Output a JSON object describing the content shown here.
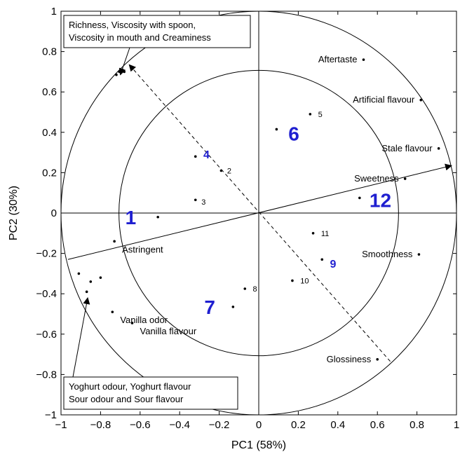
{
  "chart_data": {
    "type": "scatter",
    "xlabel": "PC1 (58%)",
    "ylabel": "PC2 (30%)",
    "xlim": [
      -1,
      1
    ],
    "ylim": [
      -1,
      1
    ],
    "xticks": [
      -1,
      -0.8,
      -0.6,
      -0.4,
      -0.2,
      0,
      0.2,
      0.4,
      0.6,
      0.8,
      1
    ],
    "yticks": [
      -1,
      -0.8,
      -0.6,
      -0.4,
      -0.2,
      0,
      0.2,
      0.4,
      0.6,
      0.8,
      1
    ],
    "xtick_labels": [
      "−1",
      "−0.8",
      "−0.6",
      "−0.4",
      "−0.2",
      "0",
      "0.2",
      "0.4",
      "0.6",
      "0.8",
      "1"
    ],
    "ytick_labels": [
      "−1",
      "−0.8",
      "−0.6",
      "−0.4",
      "−0.2",
      "0",
      "0.2",
      "0.4",
      "0.6",
      "0.8",
      "1"
    ],
    "circles": [
      1.0,
      0.707
    ],
    "attributes": [
      {
        "label": "Aftertaste",
        "x": 0.53,
        "y": 0.76,
        "label_pos": "left"
      },
      {
        "label": "Artificial flavour",
        "x": 0.82,
        "y": 0.56,
        "label_pos": "left"
      },
      {
        "label": "Stale flavour",
        "x": 0.91,
        "y": 0.32,
        "label_pos": "left"
      },
      {
        "label": "Sweetness",
        "x": 0.74,
        "y": 0.17,
        "label_pos": "left"
      },
      {
        "label": "Smoothness",
        "x": 0.81,
        "y": -0.205,
        "label_pos": "left"
      },
      {
        "label": "Glossiness",
        "x": 0.6,
        "y": -0.725,
        "label_pos": "left"
      },
      {
        "label": "Astringent",
        "x": -0.73,
        "y": -0.14,
        "label_pos": "right"
      },
      {
        "label": "Vanilla odor",
        "x": -0.74,
        "y": -0.49,
        "label_pos": "right"
      },
      {
        "label": "Vanilla flavour",
        "x": -0.64,
        "y": -0.545,
        "label_pos": "right"
      }
    ],
    "group_points": [
      {
        "group": "top-left",
        "points": [
          [
            -0.72,
            0.685
          ],
          [
            -0.705,
            0.7
          ],
          [
            -0.69,
            0.71
          ],
          [
            -0.68,
            0.7
          ]
        ]
      },
      {
        "group": "bottom-left",
        "points": [
          [
            -0.91,
            -0.3
          ],
          [
            -0.8,
            -0.32
          ],
          [
            -0.85,
            -0.34
          ],
          [
            -0.87,
            -0.39
          ]
        ]
      }
    ],
    "samples": [
      {
        "label": "1",
        "x": -0.51,
        "y": -0.02,
        "size": "large",
        "label_dx": -0.11,
        "label_dy": 0.0
      },
      {
        "label": "2",
        "x": -0.19,
        "y": 0.21,
        "size": "small",
        "label_dx": 0.03,
        "label_dy": 0.0
      },
      {
        "label": "3",
        "x": -0.32,
        "y": 0.065,
        "size": "small",
        "label_dx": 0.03,
        "label_dy": -0.01
      },
      {
        "label": "4",
        "x": -0.32,
        "y": 0.28,
        "size": "medium",
        "label_dx": 0.04,
        "label_dy": 0.01
      },
      {
        "label": "5",
        "x": 0.26,
        "y": 0.49,
        "size": "small",
        "label_dx": 0.04,
        "label_dy": 0.0
      },
      {
        "label": "6",
        "x": 0.09,
        "y": 0.415,
        "size": "large",
        "label_dx": 0.06,
        "label_dy": -0.02
      },
      {
        "label": "7",
        "x": -0.13,
        "y": -0.465,
        "size": "large",
        "label_dx": -0.09,
        "label_dy": 0.0
      },
      {
        "label": "8",
        "x": -0.07,
        "y": -0.375,
        "size": "small",
        "label_dx": 0.04,
        "label_dy": 0.0
      },
      {
        "label": "9",
        "x": 0.32,
        "y": -0.23,
        "size": "medium",
        "label_dx": 0.04,
        "label_dy": -0.02
      },
      {
        "label": "10",
        "x": 0.17,
        "y": -0.335,
        "size": "small",
        "label_dx": 0.04,
        "label_dy": 0.0
      },
      {
        "label": "11",
        "x": 0.275,
        "y": -0.1,
        "size": "small",
        "label_dx": 0.04,
        "label_dy": 0.0
      },
      {
        "label": "12",
        "x": 0.51,
        "y": 0.075,
        "size": "large",
        "label_dx": 0.05,
        "label_dy": -0.01
      }
    ],
    "arrows": [
      {
        "kind": "solid",
        "from": [
          -0.965,
          -0.23
        ],
        "to": [
          0.975,
          0.235
        ]
      },
      {
        "kind": "dashed",
        "from": [
          0.665,
          -0.735
        ],
        "to": [
          -0.655,
          0.735
        ]
      }
    ],
    "annotation_boxes": [
      {
        "lines": [
          "Richness, Viscosity with spoon,",
          "Viscosity in mouth and Creaminess"
        ],
        "position": "top-left",
        "pointer_to": [
          -0.7,
          0.685
        ]
      },
      {
        "lines": [
          "Yoghurt odour, Yoghurt flavour",
          "Sour odour and Sour flavour"
        ],
        "position": "bottom-left",
        "pointer_to": [
          -0.865,
          -0.42
        ]
      }
    ]
  }
}
